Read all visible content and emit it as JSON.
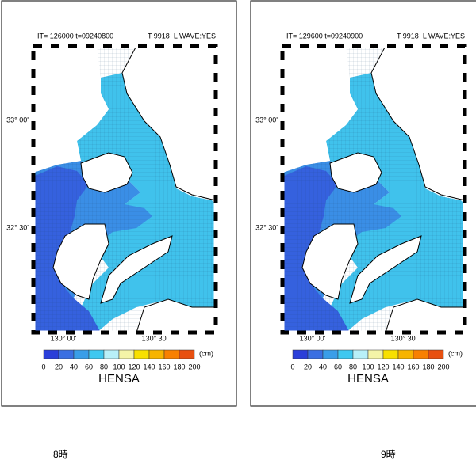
{
  "panels": [
    {
      "header_left": "IT=  126000   t=09240800",
      "header_right": "T 9918_L    WAVE:YES",
      "caption": "8時"
    },
    {
      "header_left": "IT=  129600   t=09240900",
      "header_right": "T 9918_L    WAVE:YES",
      "caption": "9時"
    }
  ],
  "map": {
    "lat_labels": [
      "33° 00'",
      "32° 30'"
    ],
    "lon_labels": [
      "130° 00'",
      "130° 30'"
    ]
  },
  "colorbar": {
    "ticks": [
      0,
      20,
      40,
      60,
      80,
      100,
      120,
      140,
      160,
      180,
      200
    ],
    "colors": [
      "#2b3fd9",
      "#3a6fe2",
      "#3a9ee8",
      "#3ec8f0",
      "#b8f0f8",
      "#f4f4a8",
      "#f8e000",
      "#f8b400",
      "#f88000",
      "#e85010"
    ],
    "unit": "(cm)",
    "label": "HENSA"
  }
}
